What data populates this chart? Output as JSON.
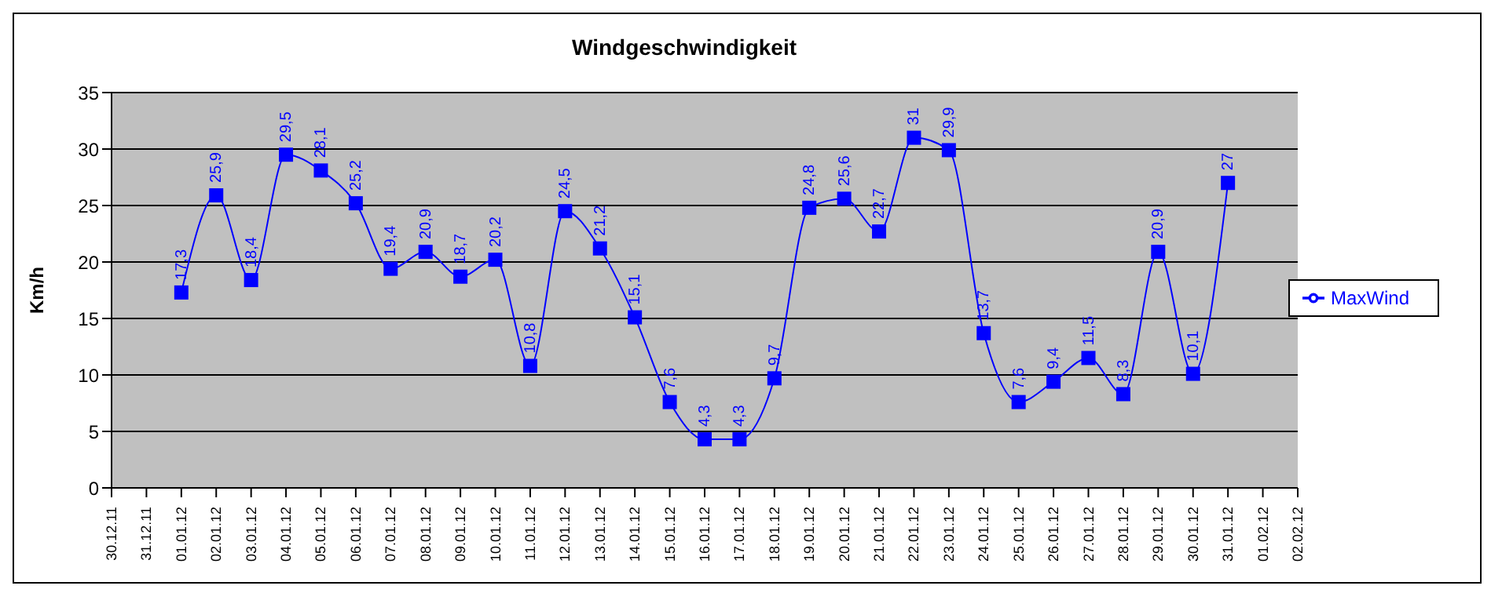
{
  "chart_data": {
    "type": "line",
    "title": "Windgeschwindigkeit",
    "ylabel": "Km/h",
    "categories": [
      "30.12.11",
      "31.12.11",
      "01.01.12",
      "02.01.12",
      "03.01.12",
      "04.01.12",
      "05.01.12",
      "06.01.12",
      "07.01.12",
      "08.01.12",
      "09.01.12",
      "10.01.12",
      "11.01.12",
      "12.01.12",
      "13.01.12",
      "14.01.12",
      "15.01.12",
      "16.01.12",
      "17.01.12",
      "18.01.12",
      "19.01.12",
      "20.01.12",
      "21.01.12",
      "22.01.12",
      "23.01.12",
      "24.01.12",
      "25.01.12",
      "26.01.12",
      "27.01.12",
      "28.01.12",
      "29.01.12",
      "30.01.12",
      "31.01.12",
      "01.02.12",
      "02.02.12"
    ],
    "series": [
      {
        "name": "MaxWind",
        "color": "#0000ff",
        "values": [
          null,
          null,
          17.3,
          25.9,
          18.4,
          29.5,
          28.1,
          25.2,
          19.4,
          20.9,
          18.7,
          20.2,
          10.8,
          24.5,
          21.2,
          15.1,
          7.6,
          4.3,
          4.3,
          9.7,
          24.8,
          25.6,
          22.7,
          31,
          29.9,
          13.7,
          7.6,
          9.4,
          11.5,
          8.3,
          20.9,
          10.1,
          27,
          null,
          null
        ],
        "value_labels": [
          null,
          null,
          "17,3",
          "25,9",
          "18,4",
          "29,5",
          "28,1",
          "25,2",
          "19,4",
          "20,9",
          "18,7",
          "20,2",
          "10,8",
          "24,5",
          "21,2",
          "15,1",
          "7,6",
          "4,3",
          "4,3",
          "9,7",
          "24,8",
          "25,6",
          "22,7",
          "31",
          "29,9",
          "13,7",
          "7,6",
          "9,4",
          "11,5",
          "8,3",
          "20,9",
          "10,1",
          "27",
          null,
          null
        ]
      }
    ],
    "ylim": [
      0,
      35
    ],
    "yticks": [
      0,
      5,
      10,
      15,
      20,
      25,
      30,
      35
    ],
    "grid": "y",
    "legend": "right",
    "marker": "square",
    "line_style": "solid"
  }
}
